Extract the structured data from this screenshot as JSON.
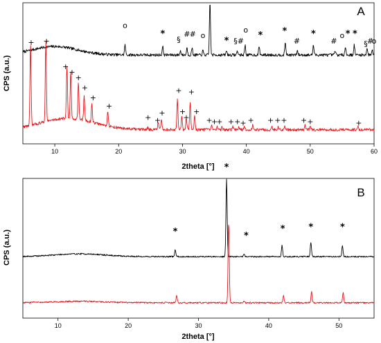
{
  "chart_data": [
    {
      "panel": "A",
      "type": "line",
      "xlabel": "2theta [°]",
      "ylabel": "CPS (a.u.)",
      "xlim": [
        5,
        60
      ],
      "x_ticks": [
        10,
        20,
        30,
        40,
        50,
        60
      ],
      "grid": false,
      "series": [
        {
          "color": "#000000",
          "baseline": 0.63,
          "broad_hump": {
            "center": 10,
            "width": 5,
            "height": 0.06
          },
          "peaks": [
            {
              "x": 21.0,
              "h": 0.07
            },
            {
              "x": 26.9,
              "h": 0.06
            },
            {
              "x": 29.7,
              "h": 0.03
            },
            {
              "x": 30.7,
              "h": 0.05
            },
            {
              "x": 31.5,
              "h": 0.05
            },
            {
              "x": 33.2,
              "h": 0.03
            },
            {
              "x": 34.3,
              "h": 0.38
            },
            {
              "x": 36.9,
              "h": 0.03
            },
            {
              "x": 38.6,
              "h": 0.03
            },
            {
              "x": 39.8,
              "h": 0.07
            },
            {
              "x": 42.0,
              "h": 0.06
            },
            {
              "x": 46.1,
              "h": 0.09
            },
            {
              "x": 48.0,
              "h": 0.03
            },
            {
              "x": 50.5,
              "h": 0.07
            },
            {
              "x": 53.9,
              "h": 0.03
            },
            {
              "x": 55.5,
              "h": 0.06
            },
            {
              "x": 56.9,
              "h": 0.07
            },
            {
              "x": 58.9,
              "h": 0.05
            },
            {
              "x": 59.7,
              "h": 0.04
            }
          ]
        },
        {
          "color": "#e8141a",
          "baseline": 0.1,
          "broad_hump": {
            "center": 12,
            "width": 6,
            "height": 0.08
          },
          "peaks": [
            {
              "x": 6.2,
              "h": 0.58
            },
            {
              "x": 8.6,
              "h": 0.58
            },
            {
              "x": 11.9,
              "h": 0.38
            },
            {
              "x": 12.5,
              "h": 0.33
            },
            {
              "x": 13.7,
              "h": 0.26
            },
            {
              "x": 14.6,
              "h": 0.18
            },
            {
              "x": 15.8,
              "h": 0.13
            },
            {
              "x": 18.3,
              "h": 0.11
            },
            {
              "x": 24.6,
              "h": 0.02
            },
            {
              "x": 26.2,
              "h": 0.05
            },
            {
              "x": 26.7,
              "h": 0.07
            },
            {
              "x": 29.2,
              "h": 0.22
            },
            {
              "x": 29.9,
              "h": 0.1
            },
            {
              "x": 30.6,
              "h": 0.08
            },
            {
              "x": 31.2,
              "h": 0.2
            },
            {
              "x": 31.9,
              "h": 0.1
            },
            {
              "x": 34.6,
              "h": 0.03
            },
            {
              "x": 35.4,
              "h": 0.02
            },
            {
              "x": 36.2,
              "h": 0.02
            },
            {
              "x": 37.9,
              "h": 0.02
            },
            {
              "x": 38.8,
              "h": 0.02
            },
            {
              "x": 39.7,
              "h": 0.02
            },
            {
              "x": 41.0,
              "h": 0.03
            },
            {
              "x": 44.0,
              "h": 0.02
            },
            {
              "x": 45.0,
              "h": 0.02
            },
            {
              "x": 46.0,
              "h": 0.03
            },
            {
              "x": 49.2,
              "h": 0.03
            },
            {
              "x": 50.0,
              "h": 0.02
            },
            {
              "x": 57.5,
              "h": 0.02
            }
          ]
        }
      ],
      "annotations": [
        {
          "x": 21.0,
          "sym": "o",
          "y": 0.82
        },
        {
          "x": 26.9,
          "sym": "*",
          "y": 0.76
        },
        {
          "x": 29.4,
          "sym": "§",
          "y": 0.72
        },
        {
          "x": 30.7,
          "sym": "#",
          "y": 0.76
        },
        {
          "x": 31.6,
          "sym": "#",
          "y": 0.76
        },
        {
          "x": 33.2,
          "sym": "o",
          "y": 0.75
        },
        {
          "x": 34.3,
          "sym": "*",
          "y": 1.05
        },
        {
          "x": 36.9,
          "sym": "*",
          "y": 0.71
        },
        {
          "x": 38.3,
          "sym": "§",
          "y": 0.71
        },
        {
          "x": 39.1,
          "sym": "#",
          "y": 0.71
        },
        {
          "x": 39.9,
          "sym": "o",
          "y": 0.79
        },
        {
          "x": 42.2,
          "sym": "*",
          "y": 0.75
        },
        {
          "x": 46.0,
          "sym": "*",
          "y": 0.78
        },
        {
          "x": 47.9,
          "sym": "#",
          "y": 0.71
        },
        {
          "x": 50.5,
          "sym": "*",
          "y": 0.76
        },
        {
          "x": 53.7,
          "sym": "#",
          "y": 0.71
        },
        {
          "x": 55.0,
          "sym": "o",
          "y": 0.75
        },
        {
          "x": 55.9,
          "sym": "*",
          "y": 0.76
        },
        {
          "x": 57.0,
          "sym": "*",
          "y": 0.76
        },
        {
          "x": 58.7,
          "sym": "§",
          "y": 0.69
        },
        {
          "x": 59.4,
          "sym": "#",
          "y": 0.71
        },
        {
          "x": 60.0,
          "sym": "o",
          "y": 0.71
        },
        {
          "x": 6.3,
          "sym": "+",
          "y": 0.7
        },
        {
          "x": 8.7,
          "sym": "+",
          "y": 0.71
        },
        {
          "x": 11.7,
          "sym": "+",
          "y": 0.53
        },
        {
          "x": 12.7,
          "sym": "+",
          "y": 0.49
        },
        {
          "x": 13.7,
          "sym": "+",
          "y": 0.45
        },
        {
          "x": 14.7,
          "sym": "+",
          "y": 0.38
        },
        {
          "x": 16.0,
          "sym": "+",
          "y": 0.31
        },
        {
          "x": 18.5,
          "sym": "+",
          "y": 0.25
        },
        {
          "x": 24.6,
          "sym": "+",
          "y": 0.17
        },
        {
          "x": 26.1,
          "sym": "+",
          "y": 0.15
        },
        {
          "x": 26.8,
          "sym": "+",
          "y": 0.2
        },
        {
          "x": 29.4,
          "sym": "+",
          "y": 0.36
        },
        {
          "x": 30.0,
          "sym": "+",
          "y": 0.21
        },
        {
          "x": 30.6,
          "sym": "+",
          "y": 0.17
        },
        {
          "x": 31.4,
          "sym": "+",
          "y": 0.35
        },
        {
          "x": 32.2,
          "sym": "+",
          "y": 0.21
        },
        {
          "x": 34.2,
          "sym": "+",
          "y": 0.15
        },
        {
          "x": 35.0,
          "sym": "+",
          "y": 0.14
        },
        {
          "x": 35.8,
          "sym": "+",
          "y": 0.14
        },
        {
          "x": 37.6,
          "sym": "+",
          "y": 0.14
        },
        {
          "x": 38.6,
          "sym": "+",
          "y": 0.14
        },
        {
          "x": 39.5,
          "sym": "+",
          "y": 0.13
        },
        {
          "x": 40.7,
          "sym": "+",
          "y": 0.15
        },
        {
          "x": 43.8,
          "sym": "+",
          "y": 0.15
        },
        {
          "x": 44.9,
          "sym": "+",
          "y": 0.15
        },
        {
          "x": 45.9,
          "sym": "+",
          "y": 0.15
        },
        {
          "x": 49.0,
          "sym": "+",
          "y": 0.15
        },
        {
          "x": 50.0,
          "sym": "+",
          "y": 0.14
        },
        {
          "x": 57.6,
          "sym": "+",
          "y": 0.13
        }
      ]
    },
    {
      "panel": "B",
      "type": "line",
      "xlabel": "2theta [°]",
      "ylabel": "CPS (a.u.)",
      "xlim": [
        5,
        55
      ],
      "x_ticks": [
        10,
        20,
        30,
        40,
        50
      ],
      "grid": false,
      "series": [
        {
          "color": "#000000",
          "baseline": 0.44,
          "broad_hump": {
            "center": 13,
            "width": 5,
            "height": 0.02
          },
          "peaks": [
            {
              "x": 26.7,
              "h": 0.05
            },
            {
              "x": 34.0,
              "h": 0.56
            },
            {
              "x": 36.5,
              "h": 0.02
            },
            {
              "x": 41.9,
              "h": 0.08
            },
            {
              "x": 46.0,
              "h": 0.1
            },
            {
              "x": 50.5,
              "h": 0.08
            }
          ]
        },
        {
          "color": "#e8141a",
          "baseline": 0.11,
          "broad_hump": {
            "center": 13,
            "width": 5,
            "height": 0.01
          },
          "peaks": [
            {
              "x": 26.9,
              "h": 0.05
            },
            {
              "x": 34.3,
              "h": 0.58
            },
            {
              "x": 36.5,
              "h": 0.01
            },
            {
              "x": 42.1,
              "h": 0.05
            },
            {
              "x": 46.1,
              "h": 0.08
            },
            {
              "x": 50.6,
              "h": 0.07
            }
          ]
        }
      ],
      "annotations": [
        {
          "x": 26.7,
          "sym": "*",
          "y": 0.6
        },
        {
          "x": 34.0,
          "sym": "*",
          "y": 1.06
        },
        {
          "x": 36.8,
          "sym": "*",
          "y": 0.57
        },
        {
          "x": 42.0,
          "sym": "*",
          "y": 0.62
        },
        {
          "x": 46.0,
          "sym": "*",
          "y": 0.63
        },
        {
          "x": 50.5,
          "sym": "*",
          "y": 0.63
        }
      ]
    }
  ]
}
